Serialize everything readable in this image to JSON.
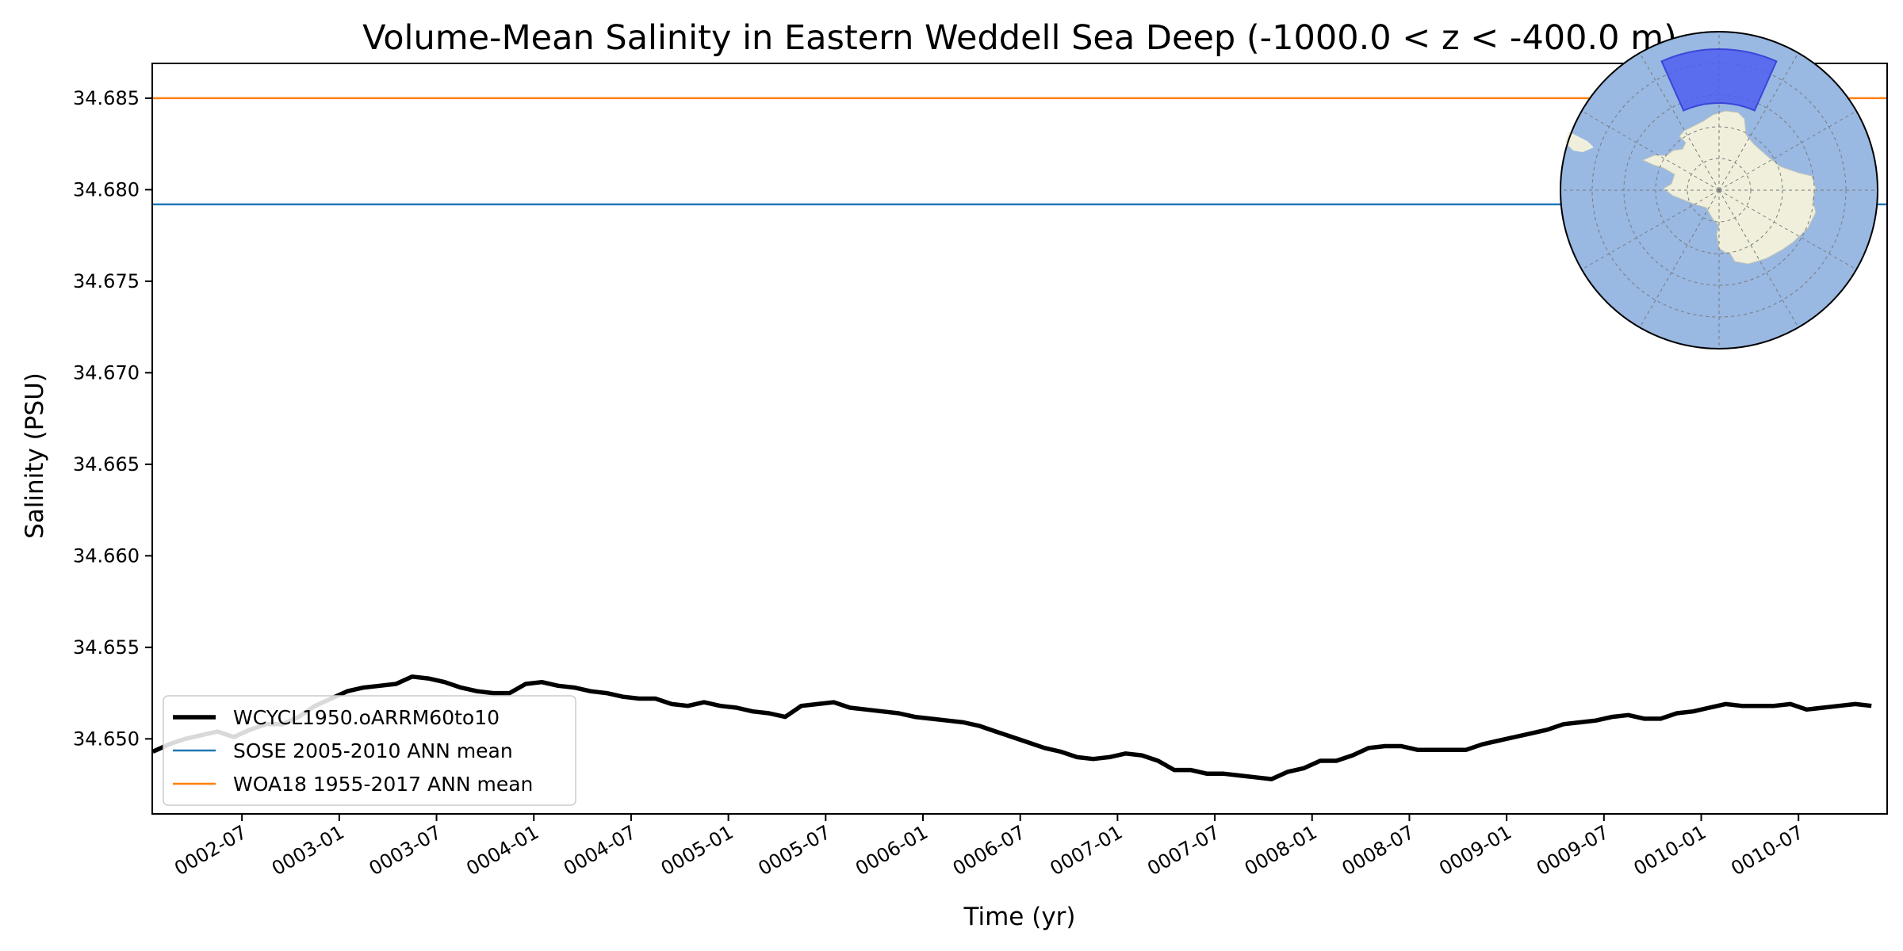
{
  "chart_data": {
    "type": "line",
    "title": "Volume-Mean Salinity in Eastern Weddell Sea Deep (-1000.0 < z < -400.0 m)",
    "xlabel": "Time (yr)",
    "ylabel": "Salinity (PSU)",
    "xlim": [
      "0002-01-15",
      "0010-12-15"
    ],
    "ylim": [
      34.6459,
      34.6869
    ],
    "x_ticks": [
      "0002-07",
      "0003-01",
      "0003-07",
      "0004-01",
      "0004-07",
      "0005-01",
      "0005-07",
      "0006-01",
      "0006-07",
      "0007-01",
      "0007-07",
      "0008-01",
      "0008-07",
      "0009-01",
      "0009-07",
      "0010-01",
      "0010-07"
    ],
    "y_ticks": [
      "34.650",
      "34.655",
      "34.660",
      "34.665",
      "34.670",
      "34.675",
      "34.680",
      "34.685"
    ],
    "legend_position": "lower-left",
    "grid": false,
    "series": [
      {
        "name": "WCYCL1950.oARRM60to10",
        "color": "#000000",
        "x_start": "0002-01",
        "x_step": "1 month",
        "values": [
          34.6493,
          34.6497,
          34.65,
          34.6502,
          34.6504,
          34.6501,
          34.6505,
          34.6508,
          34.6508,
          34.6512,
          34.6518,
          34.6522,
          34.6526,
          34.6528,
          34.6529,
          34.653,
          34.6534,
          34.6533,
          34.6531,
          34.6528,
          34.6526,
          34.6525,
          34.6525,
          34.653,
          34.6531,
          34.6529,
          34.6528,
          34.6526,
          34.6525,
          34.6523,
          34.6522,
          34.6522,
          34.6519,
          34.6518,
          34.652,
          34.6518,
          34.6517,
          34.6515,
          34.6514,
          34.6512,
          34.6518,
          34.6519,
          34.652,
          34.6517,
          34.6516,
          34.6515,
          34.6514,
          34.6512,
          34.6511,
          34.651,
          34.6509,
          34.6507,
          34.6504,
          34.6501,
          34.6498,
          34.6495,
          34.6493,
          34.649,
          34.6489,
          34.649,
          34.6492,
          34.6491,
          34.6488,
          34.6483,
          34.6483,
          34.6481,
          34.6481,
          34.648,
          34.6479,
          34.6478,
          34.6482,
          34.6484,
          34.6488,
          34.6488,
          34.6491,
          34.6495,
          34.6496,
          34.6496,
          34.6494,
          34.6494,
          34.6494,
          34.6494,
          34.6497,
          34.6499,
          34.6501,
          34.6503,
          34.6505,
          34.6508,
          34.6509,
          34.651,
          34.6512,
          34.6513,
          34.6511,
          34.6511,
          34.6514,
          34.6515,
          34.6517,
          34.6519,
          34.6518,
          34.6518,
          34.6518,
          34.6519,
          34.6516,
          34.6517,
          34.6518,
          34.6519,
          34.6518
        ]
      },
      {
        "name": "SOSE 2005-2010 ANN mean",
        "color": "#1f77b4",
        "constant": 34.6792
      },
      {
        "name": "WOA18 1955-2017 ANN mean",
        "color": "#ff7f0e",
        "constant": 34.685
      }
    ],
    "inset_map": {
      "projection": "south-polar-stereographic",
      "ocean_color": "#99b8e2",
      "land_color": "#efefdc",
      "region_color": "#4f5ff0",
      "region": "Eastern Weddell Sea"
    }
  }
}
